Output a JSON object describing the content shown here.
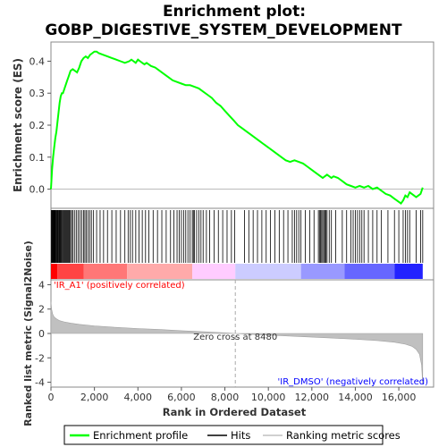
{
  "chart_data": {
    "type": "line",
    "title_line1": "Enrichment plot:",
    "title_line2": "GOBP_DIGESTIVE_SYSTEM_DEVELOPMENT",
    "es_panel": {
      "ylabel": "Enrichment score (ES)",
      "ylim": [
        -0.06,
        0.46
      ],
      "yticks": [
        0.0,
        0.1,
        0.2,
        0.3,
        0.4
      ],
      "ytick_labels": [
        "0.0",
        "0.1",
        "0.2",
        "0.3",
        "0.4"
      ],
      "series": [
        {
          "name": "Enrichment profile",
          "color": "#00ff00",
          "x": [
            0,
            50,
            100,
            150,
            200,
            250,
            300,
            350,
            400,
            450,
            500,
            550,
            600,
            650,
            700,
            750,
            800,
            850,
            900,
            1000,
            1100,
            1200,
            1300,
            1400,
            1500,
            1600,
            1700,
            1800,
            1900,
            2000,
            2100,
            2200,
            2400,
            2600,
            2800,
            3000,
            3200,
            3400,
            3600,
            3700,
            3800,
            3900,
            4000,
            4100,
            4200,
            4300,
            4400,
            4600,
            4800,
            5000,
            5200,
            5400,
            5600,
            5800,
            6000,
            6200,
            6400,
            6600,
            6800,
            7000,
            7200,
            7400,
            7600,
            7800,
            8000,
            8200,
            8400,
            8600,
            8800,
            9000,
            9200,
            9400,
            9600,
            9800,
            10000,
            10200,
            10400,
            10600,
            10800,
            11000,
            11200,
            11400,
            11600,
            11800,
            12000,
            12200,
            12300,
            12400,
            12500,
            12600,
            12700,
            12800,
            12900,
            13000,
            13200,
            13400,
            13600,
            13800,
            14000,
            14200,
            14400,
            14600,
            14800,
            15000,
            15200,
            15400,
            15600,
            15800,
            16000,
            16100,
            16200,
            16300,
            16400,
            16500,
            16600,
            16700,
            16800,
            16900,
            17000,
            17100
          ],
          "y": [
            0.0,
            0.06,
            0.1,
            0.13,
            0.16,
            0.18,
            0.21,
            0.24,
            0.27,
            0.29,
            0.3,
            0.3,
            0.31,
            0.32,
            0.33,
            0.34,
            0.35,
            0.36,
            0.37,
            0.375,
            0.37,
            0.365,
            0.38,
            0.4,
            0.41,
            0.415,
            0.41,
            0.42,
            0.425,
            0.43,
            0.43,
            0.425,
            0.42,
            0.415,
            0.41,
            0.405,
            0.4,
            0.395,
            0.4,
            0.405,
            0.4,
            0.395,
            0.405,
            0.4,
            0.395,
            0.39,
            0.395,
            0.385,
            0.38,
            0.37,
            0.36,
            0.35,
            0.34,
            0.335,
            0.33,
            0.325,
            0.325,
            0.32,
            0.315,
            0.305,
            0.295,
            0.285,
            0.27,
            0.26,
            0.245,
            0.23,
            0.215,
            0.2,
            0.19,
            0.18,
            0.17,
            0.16,
            0.15,
            0.14,
            0.13,
            0.12,
            0.11,
            0.1,
            0.09,
            0.085,
            0.09,
            0.085,
            0.08,
            0.07,
            0.06,
            0.05,
            0.045,
            0.04,
            0.035,
            0.04,
            0.045,
            0.04,
            0.035,
            0.04,
            0.035,
            0.025,
            0.015,
            0.01,
            0.005,
            0.01,
            0.005,
            0.01,
            0.0,
            0.005,
            -0.005,
            -0.015,
            -0.02,
            -0.03,
            -0.04,
            -0.045,
            -0.035,
            -0.02,
            -0.025,
            -0.01,
            -0.015,
            -0.02,
            -0.025,
            -0.02,
            -0.015,
            0.005
          ]
        }
      ]
    },
    "hits_panel": {
      "hits_label": "Hits",
      "hit_ranks": [
        20,
        40,
        60,
        80,
        100,
        120,
        140,
        160,
        180,
        200,
        230,
        260,
        290,
        320,
        350,
        380,
        410,
        440,
        470,
        500,
        540,
        580,
        620,
        660,
        700,
        740,
        780,
        820,
        860,
        900,
        960,
        1020,
        1100,
        1180,
        1260,
        1340,
        1420,
        1500,
        1560,
        1620,
        1700,
        1780,
        1860,
        1960,
        2100,
        2260,
        2420,
        2600,
        2800,
        3000,
        3200,
        3400,
        3550,
        3650,
        3750,
        3900,
        4050,
        4200,
        4350,
        4500,
        4700,
        4900,
        5100,
        5300,
        5500,
        5650,
        5800,
        5900,
        6000,
        6100,
        6200,
        6300,
        6400,
        6500,
        6550,
        6600,
        6700,
        6800,
        6900,
        7000,
        7150,
        7300,
        7500,
        7700,
        7900,
        8100,
        8300,
        8450,
        8900,
        9100,
        9300,
        9500,
        9700,
        9900,
        10100,
        10300,
        10500,
        10700,
        10900,
        11100,
        11200,
        11300,
        11400,
        11500,
        11700,
        11900,
        12100,
        12300,
        12350,
        12400,
        12450,
        12500,
        12550,
        12600,
        12650,
        12700,
        12800,
        12900,
        13100,
        13400,
        13600,
        13800,
        13900,
        14000,
        14100,
        14200,
        14300,
        14400,
        14600,
        14800,
        15000,
        15200,
        15500,
        15800,
        16000,
        16200,
        16300,
        16400,
        16500,
        16800,
        17000,
        17100
      ],
      "band_colors": [
        "#ff0000",
        "#ff4444",
        "#ff7777",
        "#ffaaaa",
        "#ffccff",
        "#ccccff",
        "#9999ff",
        "#6666ff",
        "#2222ff"
      ]
    },
    "metric_panel": {
      "ylabel": "Ranked list metric (Signal2Noise)",
      "ylim": [
        -4.4,
        4.4
      ],
      "yticks": [
        4,
        2,
        0,
        -2,
        -4
      ],
      "ytick_labels": [
        "4",
        "2",
        "0",
        "-2",
        "-4"
      ],
      "x": [
        0,
        30,
        80,
        150,
        250,
        400,
        600,
        900,
        1300,
        2000,
        3000,
        4000,
        5000,
        6000,
        7000,
        8000,
        8480,
        9000,
        10000,
        11000,
        12000,
        13000,
        14000,
        15000,
        15800,
        16300,
        16600,
        16800,
        16950,
        17050,
        17100
      ],
      "y": [
        2.6,
        2.0,
        1.6,
        1.35,
        1.2,
        1.05,
        0.95,
        0.85,
        0.75,
        0.62,
        0.5,
        0.4,
        0.32,
        0.23,
        0.14,
        0.05,
        0.0,
        -0.05,
        -0.13,
        -0.21,
        -0.3,
        -0.38,
        -0.47,
        -0.58,
        -0.72,
        -0.88,
        -1.05,
        -1.3,
        -1.7,
        -2.6,
        -4.2
      ],
      "zero_cross_text": "Zero cross at 8480",
      "zero_cross_rank": 8480,
      "pos_label": "'IR_A1' (positively correlated)",
      "neg_label": "'IR_DMSO' (negatively correlated)",
      "pos_color": "#ff0000",
      "neg_color": "#0000ff",
      "fill_color": "#c0c0c0"
    },
    "xaxis": {
      "xlabel": "Rank in Ordered Dataset",
      "xlim": [
        0,
        17600
      ],
      "xticks": [
        0,
        2000,
        4000,
        6000,
        8000,
        10000,
        12000,
        14000,
        16000
      ],
      "xtick_labels": [
        "0",
        "2,000",
        "4,000",
        "6,000",
        "8,000",
        "10,000",
        "12,000",
        "14,000",
        "16,000"
      ]
    },
    "legend": {
      "placement": "bottom",
      "items": [
        {
          "label": "Enrichment profile",
          "color": "#00ff00",
          "kind": "line"
        },
        {
          "label": "Hits",
          "color": "#000000",
          "kind": "line"
        },
        {
          "label": "Ranking metric scores",
          "color": "#c0c0c0",
          "kind": "line"
        }
      ]
    }
  }
}
